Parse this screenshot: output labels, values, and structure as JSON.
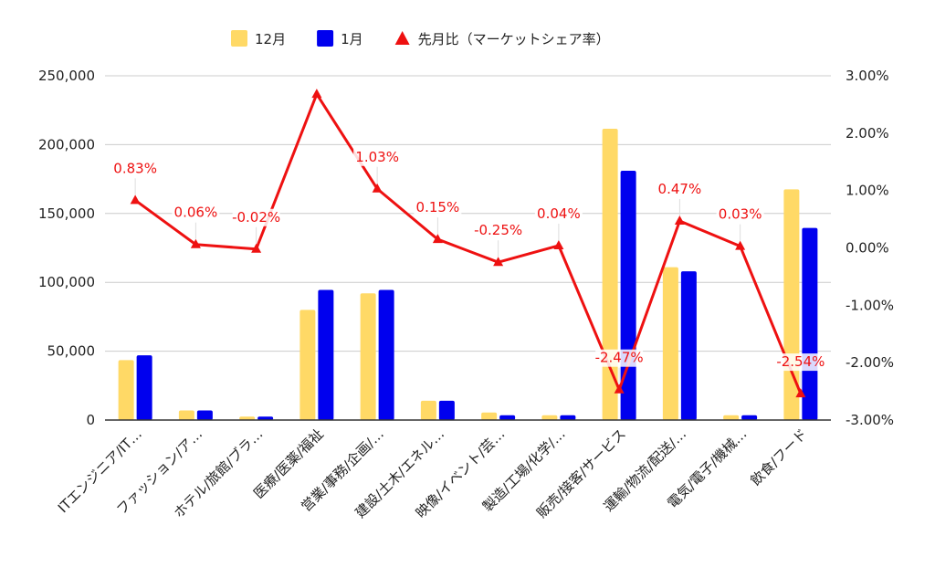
{
  "chart_data": {
    "type": "bar",
    "categories": [
      "ITエンジニア/IT…",
      "ファッション/ア…",
      "ホテル/旅館/ブラ…",
      "医療/医薬/福祉",
      "営業/事務/企画/…",
      "建設/土木/エネル…",
      "映像/イベント/芸…",
      "製造/工場/化学/…",
      "販売/接客/サービス",
      "運輸/物流/配送/…",
      "電気/電子/機械…",
      "飲食/フード"
    ],
    "series": [
      {
        "name": "12月",
        "type": "bar",
        "axis": "left",
        "color": "#FFD966",
        "values": [
          43500,
          7000,
          2500,
          80000,
          92000,
          14000,
          5500,
          3500,
          211500,
          111000,
          3500,
          167500
        ]
      },
      {
        "name": "1月",
        "type": "bar",
        "axis": "left",
        "color": "#0000EE",
        "values": [
          47000,
          7000,
          2500,
          94500,
          94500,
          14000,
          3500,
          3500,
          181000,
          108000,
          3500,
          139500
        ]
      },
      {
        "name": "先月比（マーケットシェア率）",
        "type": "line",
        "axis": "right",
        "color": "#EE1111",
        "values": [
          0.83,
          0.06,
          -0.02,
          2.68,
          1.03,
          0.15,
          -0.25,
          0.04,
          -2.47,
          0.47,
          0.03,
          -2.54
        ],
        "labels": [
          "0.83%",
          "0.06%",
          "-0.02%",
          "",
          "1.03%",
          "0.15%",
          "-0.25%",
          "0.04%",
          "-2.47%",
          "0.47%",
          "0.03%",
          "-2.54%"
        ]
      }
    ],
    "y_left": {
      "ylim": [
        0,
        250000
      ],
      "ticks": [
        0,
        50000,
        100000,
        150000,
        200000,
        250000
      ],
      "tick_labels": [
        "0",
        "50,000",
        "100,000",
        "150,000",
        "200,000",
        "250,000"
      ]
    },
    "y_right": {
      "ylim": [
        -3,
        3
      ],
      "ticks": [
        -3,
        -2,
        -1,
        0,
        1,
        2,
        3
      ],
      "tick_labels": [
        "-3.00%",
        "-2.00%",
        "-1.00%",
        "0.00%",
        "1.00%",
        "2.00%",
        "3.00%"
      ]
    },
    "grid": true,
    "legend_position": "top-center",
    "title": "",
    "xlabel": "",
    "ylabel": ""
  }
}
